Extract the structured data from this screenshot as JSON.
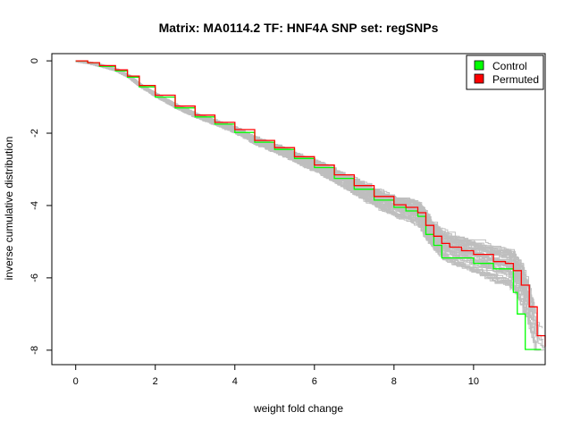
{
  "chart_data": {
    "type": "line",
    "title": "Matrix: MA0114.2 TF: HNF4A SNP set: regSNPs",
    "xlabel": "weight fold change",
    "ylabel": "inverse cumulative distribution",
    "xlim": [
      -0.6,
      11.8
    ],
    "ylim": [
      -8.4,
      0.2
    ],
    "x_ticks": [
      "0",
      "2",
      "4",
      "6",
      "8",
      "10"
    ],
    "y_ticks": [
      "0",
      "-2",
      "-4",
      "-6",
      "-8"
    ],
    "legend": {
      "position": "top-right",
      "entries": [
        {
          "label": "Control",
          "color": "#00ff00"
        },
        {
          "label": "Permuted",
          "color": "#ff0000"
        }
      ]
    },
    "background_series_color": "#bebebe",
    "background_series_count": 60,
    "series": [
      {
        "name": "Control",
        "color": "#00ff00",
        "x": [
          0.0,
          0.3,
          0.6,
          1.0,
          1.3,
          1.6,
          2.0,
          2.5,
          3.0,
          3.5,
          4.0,
          4.5,
          5.0,
          5.5,
          6.0,
          6.5,
          7.0,
          7.5,
          8.0,
          8.3,
          8.6,
          8.8,
          9.0,
          9.2,
          9.4,
          9.7,
          10.0,
          10.5,
          10.8,
          11.0,
          11.1,
          11.3,
          11.7
        ],
        "y": [
          0.0,
          -0.05,
          -0.15,
          -0.28,
          -0.45,
          -0.72,
          -1.0,
          -1.3,
          -1.55,
          -1.75,
          -1.98,
          -2.25,
          -2.45,
          -2.7,
          -2.95,
          -3.25,
          -3.55,
          -3.85,
          -4.05,
          -4.15,
          -4.3,
          -4.8,
          -5.1,
          -5.45,
          -5.45,
          -5.45,
          -5.6,
          -5.75,
          -5.75,
          -6.4,
          -7.0,
          -7.98,
          -7.98
        ]
      },
      {
        "name": "Permuted",
        "color": "#ff0000",
        "x": [
          0.0,
          0.3,
          0.6,
          1.0,
          1.3,
          1.6,
          2.0,
          2.5,
          3.0,
          3.5,
          4.0,
          4.5,
          5.0,
          5.5,
          6.0,
          6.5,
          7.0,
          7.5,
          8.0,
          8.3,
          8.6,
          8.8,
          9.0,
          9.2,
          9.4,
          9.7,
          10.0,
          10.5,
          10.8,
          11.0,
          11.2,
          11.4,
          11.6,
          11.8
        ],
        "y": [
          0.0,
          -0.05,
          -0.13,
          -0.25,
          -0.42,
          -0.68,
          -0.95,
          -1.25,
          -1.5,
          -1.7,
          -1.9,
          -2.2,
          -2.4,
          -2.65,
          -2.88,
          -3.15,
          -3.45,
          -3.75,
          -3.98,
          -4.05,
          -4.2,
          -4.55,
          -4.85,
          -5.05,
          -5.15,
          -5.25,
          -5.35,
          -5.55,
          -5.6,
          -5.8,
          -6.2,
          -6.8,
          -7.6,
          -7.9
        ]
      }
    ]
  }
}
